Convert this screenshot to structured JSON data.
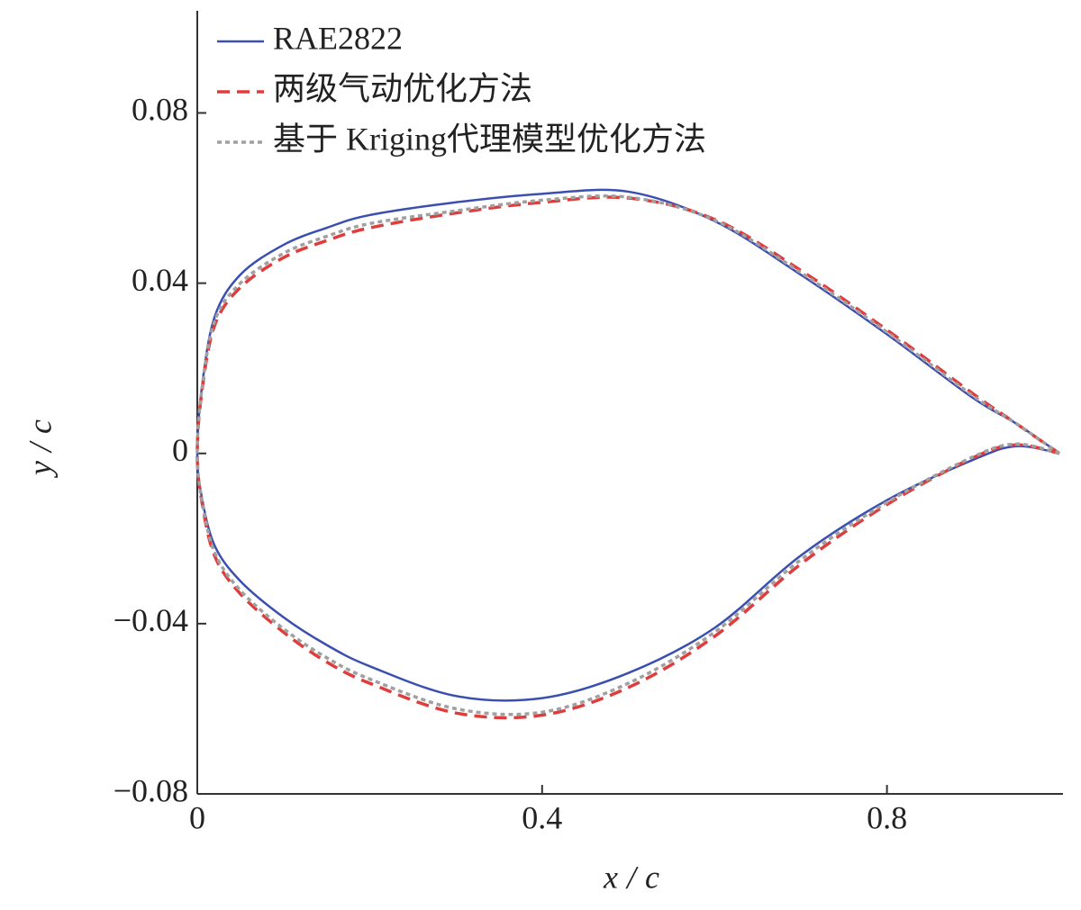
{
  "chart_data": {
    "type": "line",
    "xlabel": "x/c",
    "ylabel": "y/c",
    "x": [
      1,
      0.95,
      0.9,
      0.8,
      0.7,
      0.6,
      0.5,
      0.4,
      0.3,
      0.2,
      0.15,
      0.1,
      0.05,
      0.02,
      0.005,
      0,
      0.005,
      0.02,
      0.05,
      0.1,
      0.15,
      0.2,
      0.3,
      0.4,
      0.5,
      0.6,
      0.7,
      0.8,
      0.9,
      0.95,
      1
    ],
    "series": [
      {
        "name": "RAE2822",
        "color": "#3b4fb0",
        "linestyle": "solid",
        "values": [
          0,
          0.007,
          0.013,
          0.028,
          0.042,
          0.0546,
          0.0615,
          0.061,
          0.059,
          0.056,
          0.053,
          0.049,
          0.042,
          0.032,
          0.015,
          0,
          -0.01,
          -0.0216,
          -0.03,
          -0.0385,
          -0.045,
          -0.05,
          -0.057,
          -0.0575,
          -0.0516,
          -0.041,
          -0.024,
          -0.011,
          -0.0015,
          0.0017,
          0
        ]
      },
      {
        "name": "两级气动优化方法",
        "color": "#e03c3c",
        "linestyle": "dashed",
        "values": [
          0,
          0.007,
          0.014,
          0.029,
          0.043,
          0.055,
          0.06,
          0.059,
          0.0565,
          0.053,
          0.05,
          0.046,
          0.039,
          0.03,
          0.014,
          0,
          -0.011,
          -0.024,
          -0.033,
          -0.042,
          -0.049,
          -0.054,
          -0.061,
          -0.0615,
          -0.055,
          -0.043,
          -0.026,
          -0.012,
          -0.001,
          0.002,
          0
        ]
      },
      {
        "name": "基于 Kriging代理模型优化方法",
        "color": "#a0a0a0",
        "linestyle": "dotted",
        "values": [
          0,
          0.007,
          0.0135,
          0.0285,
          0.0425,
          0.0548,
          0.0602,
          0.0595,
          0.057,
          0.054,
          0.051,
          0.047,
          0.04,
          0.031,
          0.0145,
          0,
          -0.0105,
          -0.0232,
          -0.0322,
          -0.0412,
          -0.048,
          -0.053,
          -0.06,
          -0.0608,
          -0.054,
          -0.042,
          -0.025,
          -0.0115,
          -0.0008,
          0.0022,
          0
        ]
      }
    ],
    "xlim": [
      0,
      1
    ],
    "xticks": [
      0,
      0.4,
      0.8
    ],
    "ylim": [
      -0.08,
      0.104
    ],
    "yticks": [
      {
        "value": -0.08,
        "label": "−0.08"
      },
      {
        "value": -0.04,
        "label": "−0.04"
      },
      0,
      0.04,
      0.08
    ],
    "legend": "upper left",
    "grid": false
  }
}
